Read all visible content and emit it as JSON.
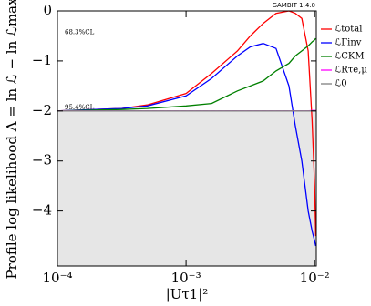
{
  "chart_data": {
    "type": "line",
    "ylabel": "Profile log likelihood Λ = ln ℒ − ln ℒmax",
    "xlabel": "|Uτ1|²",
    "watermark": "GAMBIT 1.4.0",
    "log_x": true,
    "xlim": [
      0.0001,
      0.0103
    ],
    "ylim": [
      -5.1,
      0
    ],
    "xticks": [
      {
        "value": 0.0001,
        "label": "10⁻⁴"
      },
      {
        "value": 0.001,
        "label": "10⁻³"
      },
      {
        "value": 0.01,
        "label": "10⁻²"
      }
    ],
    "yticks": [
      {
        "value": 0,
        "label": "0"
      },
      {
        "value": -1,
        "label": "−1"
      },
      {
        "value": -2,
        "label": "−2"
      },
      {
        "value": -3,
        "label": "−3"
      },
      {
        "value": -4,
        "label": "−4"
      }
    ],
    "cl_lines": [
      {
        "value": -0.5,
        "label": "68.3%CL"
      },
      {
        "value": -2,
        "label": "95.4%CL"
      }
    ],
    "shade_below": -2,
    "x": [
      0.0001,
      0.000316,
      0.0005,
      0.001,
      0.00158,
      0.00251,
      0.00316,
      0.00398,
      0.00501,
      0.00631,
      0.00708,
      0.00794,
      0.00891,
      0.00955,
      0.01,
      0.0102
    ],
    "series": [
      {
        "name": "ℒtotal",
        "color": "#ff0000",
        "values": [
          -2.0,
          -1.95,
          -1.88,
          -1.65,
          -1.25,
          -0.8,
          -0.5,
          -0.25,
          -0.05,
          0,
          -0.05,
          -0.15,
          -0.8,
          -2.2,
          -3.5,
          -4.5
        ]
      },
      {
        "name": "ℒΓinv",
        "color": "#0000ff",
        "values": [
          -2.0,
          -1.95,
          -1.9,
          -1.7,
          -1.35,
          -0.9,
          -0.72,
          -0.65,
          -0.75,
          -1.5,
          -2.3,
          -3.0,
          -4.0,
          -4.4,
          -4.6,
          -4.7
        ]
      },
      {
        "name": "ℒCKM",
        "color": "#008000",
        "values": [
          -2.0,
          -1.97,
          -1.95,
          -1.9,
          -1.85,
          -1.6,
          -1.5,
          -1.4,
          -1.2,
          -1.05,
          -0.9,
          -0.8,
          -0.7,
          -0.62,
          -0.58,
          -0.55
        ]
      },
      {
        "name": "ℒRτe,μ",
        "color": "#ff00ff",
        "values": [
          -2.0,
          -2.0,
          -2.0,
          -2.0,
          -2.0,
          -2.0,
          -2.0,
          -2.0,
          -2.0,
          -2.0,
          -2.0,
          -2.0,
          -2.0,
          -1.99,
          -1.99,
          -1.99
        ]
      },
      {
        "name": "ℒ0",
        "color": "#808080",
        "values": [
          -2.0,
          -2.0,
          -2.0,
          -2.0,
          -2.0,
          -2.0,
          -2.0,
          -2.0,
          -2.0,
          -2.0,
          -2.0,
          -2.0,
          -2.0,
          -2.0,
          -2.0,
          -2.0
        ]
      }
    ]
  }
}
